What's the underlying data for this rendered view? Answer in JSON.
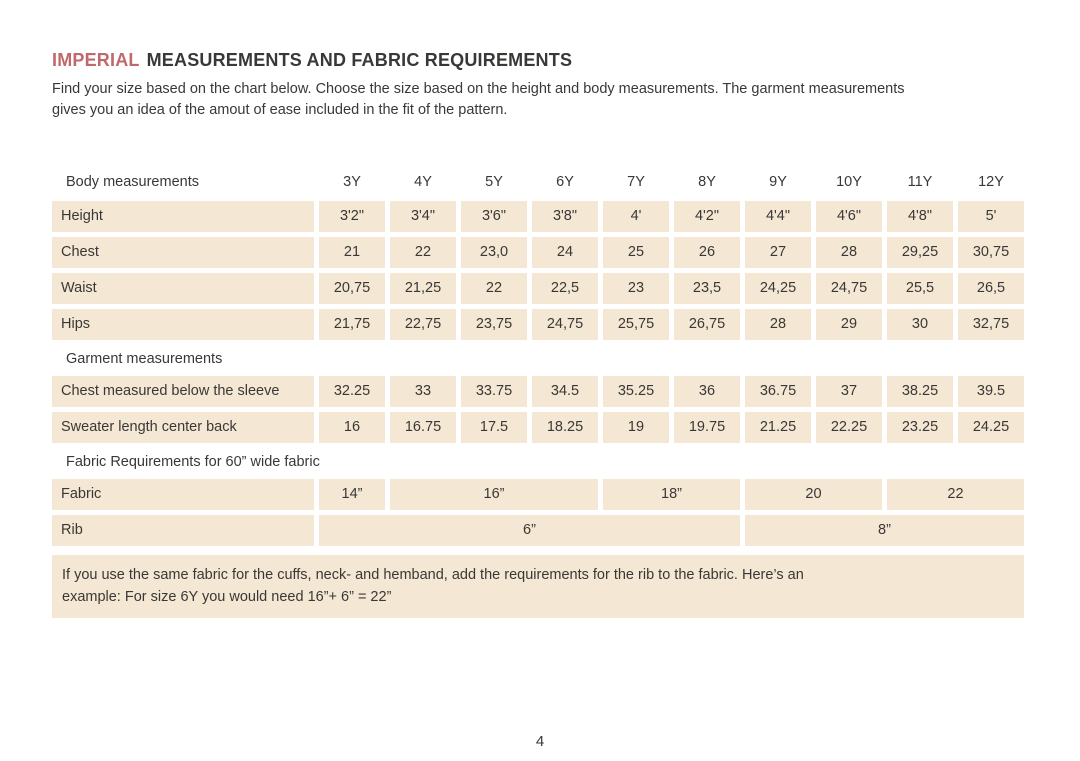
{
  "page": {
    "title": {
      "highlight": "IMPERIAL",
      "rest": "MEASUREMENTS AND FABRIC REQUIREMENTS"
    },
    "intro": {
      "line1": "Find your size based on the chart below. Choose the size based on the height and body measurements. The garment measurements",
      "line2": "gives you an idea of the amout of ease included in the fit of the pattern."
    },
    "page_number": "4"
  },
  "colors": {
    "accent": "#c0696c",
    "cell_bg": "#f4e7d3",
    "text": "#3a3836",
    "page_bg": "#ffffff"
  },
  "table": {
    "header_label": "Body measurements",
    "sizes": [
      "3Y",
      "4Y",
      "5Y",
      "6Y",
      "7Y",
      "8Y",
      "9Y",
      "10Y",
      "11Y",
      "12Y"
    ],
    "body_rows": [
      {
        "label": "Height",
        "values": [
          "3'2\"",
          "3'4\"",
          "3'6\"",
          "3'8\"",
          "4'",
          "4'2\"",
          "4'4\"",
          "4'6\"",
          "4'8\"",
          "5'"
        ]
      },
      {
        "label": "Chest",
        "values": [
          "21",
          "22",
          "23,0",
          "24",
          "25",
          "26",
          "27",
          "28",
          "29,25",
          "30,75"
        ]
      },
      {
        "label": "Waist",
        "values": [
          "20,75",
          "21,25",
          "22",
          "22,5",
          "23",
          "23,5",
          "24,25",
          "24,75",
          "25,5",
          "26,5"
        ]
      },
      {
        "label": "Hips",
        "values": [
          "21,75",
          "22,75",
          "23,75",
          "24,75",
          "25,75",
          "26,75",
          "28",
          "29",
          "30",
          "32,75"
        ]
      }
    ],
    "garment_section_label": "Garment measurements",
    "garment_rows": [
      {
        "label": "Chest measured below the sleeve",
        "values": [
          "32.25",
          "33",
          "33.75",
          "34.5",
          "35.25",
          "36",
          "36.75",
          "37",
          "38.25",
          "39.5"
        ]
      },
      {
        "label": "Sweater length center back",
        "values": [
          "16",
          "16.75",
          "17.5",
          "18.25",
          "19",
          "19.75",
          "21.25",
          "22.25",
          "23.25",
          "24.25"
        ]
      }
    ],
    "fabric_section_label": "Fabric Requirements for  60” wide fabric",
    "fabric_row": {
      "label": "Fabric",
      "cells": [
        {
          "value": "14”",
          "span": 1
        },
        {
          "value": "16”",
          "span": 3
        },
        {
          "value": "18”",
          "span": 2
        },
        {
          "value": "20",
          "span": 2
        },
        {
          "value": "22",
          "span": 2
        }
      ]
    },
    "rib_row": {
      "label": "Rib",
      "cells": [
        {
          "value": "6”",
          "span": 6
        },
        {
          "value": "8”",
          "span": 4
        }
      ]
    }
  },
  "note": {
    "line1": "If you use the same fabric for the cuffs, neck- and hemband, add the requirements for the rib to the fabric. Here’s an",
    "line2": "example: For size 6Y you would need 16”+ 6” = 22”"
  }
}
